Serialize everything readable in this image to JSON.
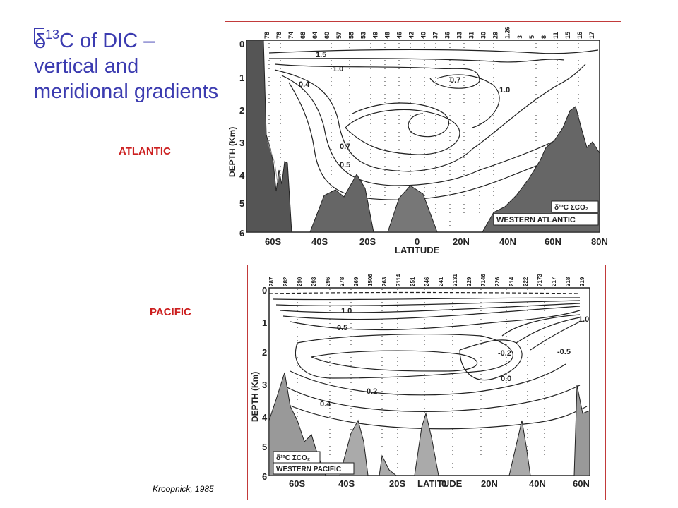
{
  "slide": {
    "title_symbol": "δ",
    "title_superscript": "13",
    "title_rest": "C  of DIC – vertical and meridional gradients",
    "citation": "Kroopnick, 1985"
  },
  "panels": [
    {
      "label": "ATLANTIC",
      "plot_label": "δ¹³C ΣCO₂",
      "plot_subtitle": "WESTERN ATLANTIC",
      "ylabel": "DEPTH (Km)",
      "xlabel": "LATITUDE",
      "x_ticks": [
        "60S",
        "40S",
        "20S",
        "0",
        "20N",
        "40N",
        "60N",
        "80N"
      ],
      "y_ticks": [
        "0",
        "1",
        "2",
        "3",
        "4",
        "5",
        "6"
      ],
      "station_numbers": [
        "78",
        "76",
        "74",
        "68",
        "64",
        "60",
        "57",
        "55",
        "53",
        "49",
        "48",
        "46",
        "42",
        "40",
        "37",
        "36",
        "33",
        "31",
        "30",
        "29",
        "1.26",
        "3",
        "5",
        "8",
        "11",
        "15",
        "16",
        "17"
      ],
      "contour_labels": [
        "1.5",
        "1.0",
        "0.4",
        "0.7",
        "1.0",
        "0.7",
        "0.5"
      ]
    },
    {
      "label": "PACIFIC",
      "plot_label": "δ¹³C ΣCO₂",
      "plot_subtitle": "WESTERN PACIFIC",
      "ylabel": "DEPTH (Km)",
      "xlabel": "LATITUDE",
      "x_ticks": [
        "60S",
        "40S",
        "20S",
        "0",
        "20N",
        "40N",
        "60N"
      ],
      "y_ticks": [
        "0",
        "1",
        "2",
        "3",
        "4",
        "5",
        "6"
      ],
      "station_numbers": [
        "287",
        "282",
        "290",
        "293",
        "296",
        "278",
        "269",
        "1506",
        "263",
        "7114",
        "251",
        "246",
        "241",
        "2131",
        "229",
        "7146",
        "226",
        "214",
        "222",
        "7173",
        "217",
        "218",
        "219"
      ],
      "contour_labels": [
        "1.0",
        "0.5",
        "-0.2",
        "0.0",
        "-0.5",
        "1.0",
        "0.2",
        "0.4"
      ]
    }
  ]
}
